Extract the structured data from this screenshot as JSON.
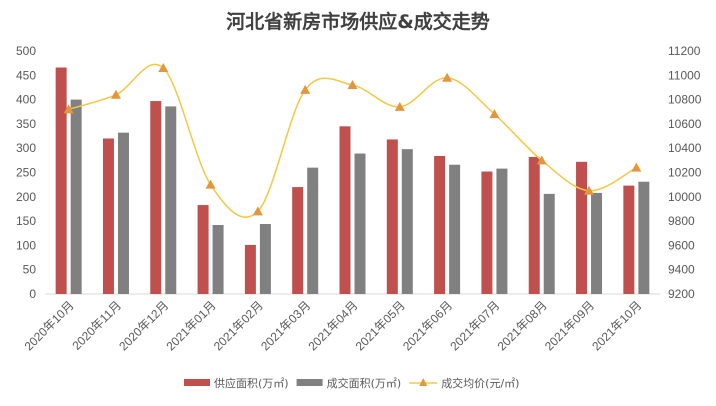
{
  "chart_data": {
    "type": "bar+line",
    "title": "河北省新房市场供应&成交走势",
    "categories": [
      "2020年10月",
      "2020年11月",
      "2020年12月",
      "2021年01月",
      "2021年02月",
      "2021年03月",
      "2021年04月",
      "2021年05月",
      "2021年06月",
      "2021年07月",
      "2021年08月",
      "2021年09月",
      "2021年10月"
    ],
    "series": [
      {
        "name": "供应面积(万㎡)",
        "type": "bar",
        "axis": "left",
        "color": "#C0504D",
        "values": [
          466,
          320,
          397,
          183,
          101,
          220,
          345,
          318,
          284,
          252,
          282,
          272,
          223
        ]
      },
      {
        "name": "成交面积(万㎡)",
        "type": "bar",
        "axis": "left",
        "color": "#808080",
        "values": [
          400,
          332,
          386,
          142,
          144,
          260,
          289,
          298,
          266,
          258,
          206,
          208,
          231
        ]
      },
      {
        "name": "成交均价(元/㎡)",
        "type": "line",
        "axis": "right",
        "color": "#F5C842",
        "marker_color": "#E3963E",
        "marker": "triangle",
        "smooth": true,
        "values": [
          10720,
          10840,
          11060,
          10100,
          9880,
          10880,
          10920,
          10740,
          10980,
          10680,
          10300,
          10050,
          10240
        ]
      }
    ],
    "left_axis": {
      "range": [
        0,
        500
      ],
      "step": 50
    },
    "right_axis": {
      "range": [
        9200,
        11200
      ],
      "step": 200
    },
    "grid": false,
    "legend": "bottom"
  }
}
